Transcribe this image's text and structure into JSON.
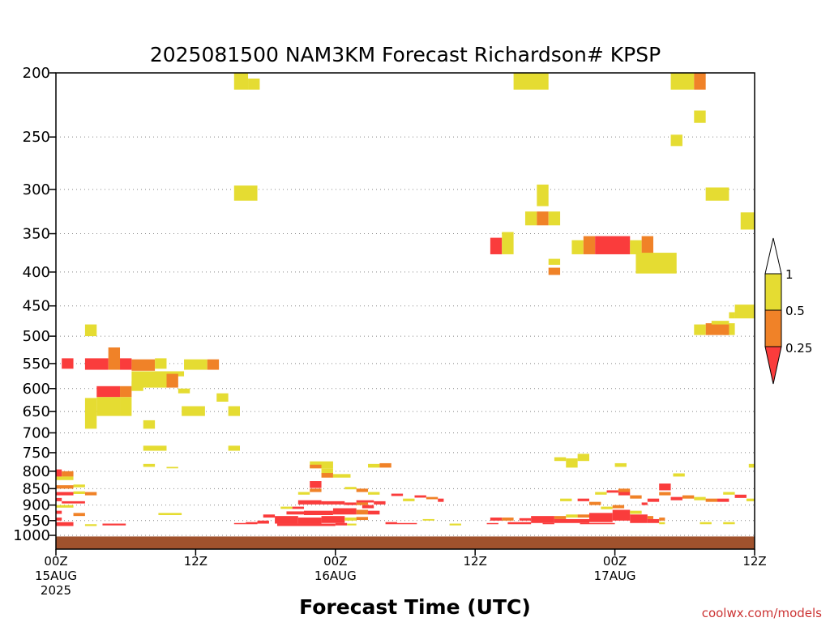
{
  "chart_data": {
    "type": "heatmap",
    "title": "2025081500 NAM3KM Forecast Richardson# KPSP",
    "xlabel": "Forecast Time (UTC)",
    "credit": "coolwx.com/models",
    "x_unit": "forecast hours from 2025-08-15 00Z",
    "xlim": [
      0,
      60
    ],
    "x_ticks": [
      {
        "hour": 0,
        "label": [
          "00Z",
          "15AUG",
          "2025"
        ]
      },
      {
        "hour": 12,
        "label": [
          "12Z"
        ]
      },
      {
        "hour": 24,
        "label": [
          "00Z",
          "16AUG"
        ]
      },
      {
        "hour": 36,
        "label": [
          "12Z"
        ]
      },
      {
        "hour": 48,
        "label": [
          "00Z",
          "17AUG"
        ]
      },
      {
        "hour": 60,
        "label": [
          "12Z"
        ]
      }
    ],
    "y_unit": "pressure (hPa)",
    "ylim": [
      1000,
      200
    ],
    "y_ticks": [
      200,
      250,
      300,
      350,
      400,
      450,
      500,
      550,
      600,
      650,
      700,
      750,
      800,
      850,
      900,
      950,
      1000
    ],
    "grid": "dotted horizontal lines at pressure ticks",
    "colorbar": {
      "labels": [
        "1",
        "0.5",
        "0.25"
      ],
      "bins": [
        {
          "range": "0.5-1",
          "color": "#e5dc32"
        },
        {
          "range": "0.25-0.5",
          "color": "#f08228"
        },
        {
          "range": "<0.25",
          "color": "#fa3c3c"
        }
      ]
    },
    "colors": {
      "Y": "#e5dc32",
      "O": "#f08228",
      "R": "#fa3c3c",
      "ground": "#a0522d"
    },
    "surface_cells": [
      [
        0,
        60,
        1004,
        1030
      ]
    ],
    "cells": [
      [
        "Y",
        15.3,
        16.5,
        200,
        212
      ],
      [
        "Y",
        16.5,
        17.5,
        204,
        212
      ],
      [
        "Y",
        39.3,
        42.3,
        200,
        212
      ],
      [
        "Y",
        52.8,
        54.8,
        200,
        212
      ],
      [
        "O",
        54.8,
        55.8,
        200,
        212
      ],
      [
        "Y",
        54.8,
        55.8,
        228,
        238
      ],
      [
        "Y",
        52.8,
        53.8,
        248,
        258
      ],
      [
        "Y",
        15.3,
        17.3,
        296,
        312
      ],
      [
        "Y",
        55.8,
        57.8,
        298,
        312
      ],
      [
        "Y",
        41.3,
        42.3,
        295,
        318
      ],
      [
        "Y",
        40.3,
        41.3,
        324,
        340
      ],
      [
        "O",
        41.3,
        42.3,
        324,
        340
      ],
      [
        "Y",
        42.3,
        43.3,
        324,
        340
      ],
      [
        "Y",
        58.8,
        60,
        325,
        345
      ],
      [
        "R",
        37.3,
        38.3,
        355,
        376
      ],
      [
        "Y",
        38.3,
        39.3,
        348,
        376
      ],
      [
        "Y",
        44.3,
        45.3,
        358,
        376
      ],
      [
        "O",
        45.3,
        46.3,
        353,
        376
      ],
      [
        "R",
        46.3,
        49.3,
        353,
        376
      ],
      [
        "Y",
        49.3,
        50.3,
        358,
        376
      ],
      [
        "O",
        50.3,
        51.3,
        353,
        376
      ],
      [
        "Y",
        49.8,
        53.3,
        374,
        402
      ],
      [
        "O",
        42.3,
        43.3,
        394,
        404
      ],
      [
        "Y",
        42.3,
        43.3,
        382,
        390
      ],
      [
        "Y",
        57.3,
        58.3,
        478,
        498
      ],
      [
        "O",
        55.8,
        57.8,
        478,
        498
      ],
      [
        "Y",
        54.8,
        55.8,
        480,
        498
      ],
      [
        "Y",
        56.3,
        57.8,
        474,
        480
      ],
      [
        "Y",
        58.3,
        60,
        448,
        470
      ],
      [
        "Y",
        57.8,
        58.3,
        460,
        470
      ],
      [
        "Y",
        2.5,
        3.5,
        480,
        500
      ],
      [
        "R",
        0.5,
        1.5,
        540,
        560
      ],
      [
        "R",
        2.5,
        4.5,
        540,
        562
      ],
      [
        "O",
        4.5,
        5.5,
        520,
        562
      ],
      [
        "R",
        5.5,
        6.5,
        540,
        562
      ],
      [
        "O",
        6.5,
        8.5,
        542,
        564
      ],
      [
        "Y",
        8.5,
        9.5,
        540,
        560
      ],
      [
        "Y",
        9.5,
        11,
        565,
        575
      ],
      [
        "Y",
        11,
        13,
        542,
        562
      ],
      [
        "O",
        13,
        14,
        542,
        562
      ],
      [
        "Y",
        6.5,
        9.5,
        565,
        598
      ],
      [
        "O",
        9.5,
        10.5,
        570,
        598
      ],
      [
        "R",
        3.5,
        5.5,
        595,
        618
      ],
      [
        "O",
        5.5,
        6.5,
        595,
        618
      ],
      [
        "Y",
        6.5,
        7.5,
        585,
        605
      ],
      [
        "Y",
        2.5,
        3.5,
        620,
        690
      ],
      [
        "Y",
        3.5,
        5.5,
        618,
        660
      ],
      [
        "Y",
        5.5,
        6.5,
        618,
        660
      ],
      [
        "Y",
        10.5,
        11.5,
        600,
        610
      ],
      [
        "Y",
        13.8,
        14.8,
        610,
        628
      ],
      [
        "Y",
        10.8,
        12.8,
        638,
        660
      ],
      [
        "Y",
        14.8,
        15.8,
        638,
        660
      ],
      [
        "Y",
        7.5,
        8.5,
        670,
        690
      ],
      [
        "Y",
        7.5,
        9.5,
        732,
        745
      ],
      [
        "Y",
        14.8,
        15.8,
        732,
        745
      ],
      [
        "Y",
        7.5,
        8.5,
        780,
        788
      ],
      [
        "Y",
        9.5,
        10.5,
        788,
        792
      ],
      [
        "Y",
        42.8,
        43.8,
        762,
        772
      ],
      [
        "Y",
        43.8,
        44.8,
        765,
        790
      ],
      [
        "Y",
        44.8,
        45.8,
        753,
        772
      ],
      [
        "Y",
        48,
        49,
        778,
        788
      ],
      [
        "Y",
        53,
        54,
        806,
        815
      ],
      [
        "Y",
        59.5,
        60,
        780,
        790
      ],
      [
        "Y",
        21.8,
        23.8,
        773,
        792
      ],
      [
        "O",
        21.8,
        22.8,
        782,
        792
      ],
      [
        "Y",
        26.8,
        27.8,
        780,
        790
      ],
      [
        "O",
        27.8,
        28.8,
        778,
        790
      ],
      [
        "Y",
        22.8,
        23.8,
        792,
        808
      ],
      [
        "Y",
        23.8,
        25.3,
        808,
        818
      ],
      [
        "O",
        22.8,
        23.8,
        805,
        818
      ],
      [
        "R",
        21.8,
        22.8,
        828,
        848
      ],
      [
        "O",
        21.8,
        22.8,
        850,
        860
      ],
      [
        "Y",
        24.8,
        25.8,
        845,
        852
      ],
      [
        "O",
        25.8,
        26.8,
        850,
        860
      ],
      [
        "Y",
        26.8,
        27.8,
        860,
        868
      ],
      [
        "Y",
        20.8,
        21.8,
        860,
        868
      ],
      [
        "R",
        28.8,
        29.8,
        865,
        872
      ],
      [
        "R",
        30.8,
        31.8,
        870,
        877
      ],
      [
        "O",
        31.8,
        32.8,
        875,
        882
      ],
      [
        "R",
        32.8,
        33.3,
        880,
        890
      ],
      [
        "Y",
        29.8,
        30.8,
        880,
        888
      ],
      [
        "R",
        25.8,
        27.3,
        885,
        892
      ],
      [
        "R",
        27.3,
        28.3,
        888,
        898
      ],
      [
        "O",
        48.3,
        49.3,
        850,
        860
      ],
      [
        "R",
        48.3,
        49.3,
        860,
        870
      ],
      [
        "O",
        49.3,
        50.3,
        870,
        880
      ],
      [
        "R",
        50.8,
        51.8,
        880,
        890
      ],
      [
        "R",
        50.3,
        50.8,
        892,
        900
      ],
      [
        "R",
        51.8,
        52.8,
        835,
        855
      ],
      [
        "O",
        51.8,
        52.8,
        860,
        870
      ],
      [
        "R",
        52.8,
        53.8,
        875,
        885
      ],
      [
        "O",
        53.8,
        54.8,
        870,
        880
      ],
      [
        "Y",
        54.8,
        55.8,
        875,
        885
      ],
      [
        "O",
        55.8,
        56.8,
        880,
        890
      ],
      [
        "R",
        56.8,
        57.8,
        880,
        890
      ],
      [
        "Y",
        57.3,
        58.3,
        860,
        868
      ],
      [
        "R",
        58.3,
        59.3,
        868,
        878
      ],
      [
        "Y",
        59.3,
        60,
        880,
        888
      ],
      [
        "Y",
        46.3,
        47.3,
        860,
        868
      ],
      [
        "R",
        47.3,
        48.3,
        855,
        862
      ],
      [
        "Y",
        43.3,
        44.3,
        880,
        888
      ],
      [
        "R",
        44.8,
        45.8,
        880,
        888
      ],
      [
        "O",
        45.8,
        46.8,
        890,
        900
      ],
      [
        "Y",
        46.8,
        47.8,
        905,
        913
      ],
      [
        "O",
        47.8,
        48.8,
        900,
        910
      ],
      [
        "R",
        0,
        0.5,
        795,
        815
      ],
      [
        "O",
        0.5,
        1.5,
        800,
        815
      ],
      [
        "Y",
        0,
        1.5,
        815,
        825
      ],
      [
        "Y",
        1.5,
        2.5,
        838,
        846
      ],
      [
        "O",
        0,
        1.5,
        840,
        850
      ],
      [
        "R",
        0,
        1.5,
        860,
        870
      ],
      [
        "Y",
        1.5,
        2.5,
        858,
        866
      ],
      [
        "O",
        2.5,
        3.5,
        860,
        870
      ],
      [
        "R",
        0,
        0.5,
        878,
        888
      ],
      [
        "R",
        0.5,
        2.5,
        888,
        895
      ],
      [
        "Y",
        0,
        1.5,
        900,
        908
      ],
      [
        "R",
        0,
        0.5,
        918,
        928
      ],
      [
        "O",
        1.5,
        2.5,
        925,
        935
      ],
      [
        "Y",
        8.8,
        10.8,
        925,
        932
      ],
      [
        "R",
        0,
        0.5,
        940,
        950
      ],
      [
        "R",
        0,
        1.5,
        955,
        968
      ],
      [
        "R",
        4,
        6,
        960,
        966
      ],
      [
        "Y",
        2.5,
        3.5,
        962,
        968
      ],
      [
        "R",
        20.8,
        22.8,
        885,
        898
      ],
      [
        "R",
        22.8,
        24.8,
        888,
        898
      ],
      [
        "R",
        24.8,
        25.8,
        892,
        900
      ],
      [
        "O",
        25.8,
        26.8,
        892,
        900
      ],
      [
        "R",
        26.3,
        27.3,
        900,
        910
      ],
      [
        "Y",
        19.3,
        20.3,
        905,
        912
      ],
      [
        "R",
        20.3,
        21.3,
        905,
        912
      ],
      [
        "R",
        19.8,
        21.3,
        920,
        930
      ],
      [
        "R",
        21.3,
        23.8,
        918,
        932
      ],
      [
        "R",
        23.8,
        25.8,
        910,
        930
      ],
      [
        "O",
        25.8,
        26.8,
        915,
        930
      ],
      [
        "R",
        26.8,
        27.8,
        918,
        930
      ],
      [
        "R",
        17.8,
        18.8,
        930,
        940
      ],
      [
        "R",
        18.8,
        20.8,
        935,
        960
      ],
      [
        "R",
        20.8,
        22.8,
        940,
        960
      ],
      [
        "R",
        22.8,
        24.8,
        935,
        958
      ],
      [
        "Y",
        24.8,
        25.8,
        940,
        950
      ],
      [
        "O",
        25.8,
        26.8,
        938,
        948
      ],
      [
        "R",
        17.3,
        18.3,
        950,
        960
      ],
      [
        "R",
        16.3,
        17.3,
        955,
        962
      ],
      [
        "R",
        15.3,
        16.3,
        958,
        962
      ],
      [
        "R",
        19,
        24,
        960,
        968
      ],
      [
        "R",
        24,
        25,
        958,
        966
      ],
      [
        "Y",
        25,
        25.8,
        960,
        966
      ],
      [
        "R",
        28.3,
        29.3,
        955,
        962
      ],
      [
        "R",
        29.3,
        31,
        958,
        962
      ],
      [
        "Y",
        33.8,
        34.8,
        960,
        966
      ],
      [
        "Y",
        31.5,
        32.5,
        945,
        950
      ],
      [
        "R",
        37.3,
        38.3,
        940,
        950
      ],
      [
        "O",
        38.3,
        39.3,
        940,
        950
      ],
      [
        "R",
        39.8,
        40.8,
        942,
        950
      ],
      [
        "R",
        40.8,
        42.8,
        935,
        958
      ],
      [
        "O",
        42.8,
        43.8,
        935,
        945
      ],
      [
        "Y",
        43.8,
        44.8,
        930,
        940
      ],
      [
        "R",
        42.8,
        45.8,
        945,
        958
      ],
      [
        "O",
        44.8,
        45.8,
        930,
        940
      ],
      [
        "R",
        45.8,
        47.8,
        925,
        955
      ],
      [
        "R",
        47.8,
        49.3,
        915,
        950
      ],
      [
        "Y",
        49.3,
        50.3,
        918,
        928
      ],
      [
        "R",
        49.3,
        50.8,
        930,
        958
      ],
      [
        "O",
        50.8,
        51.3,
        935,
        945
      ],
      [
        "R",
        50.8,
        51.8,
        945,
        958
      ],
      [
        "O",
        51.8,
        52.3,
        940,
        950
      ],
      [
        "Y",
        55.3,
        56.3,
        955,
        962
      ],
      [
        "R",
        38.8,
        40.8,
        955,
        962
      ],
      [
        "R",
        45,
        48,
        958,
        962
      ],
      [
        "R",
        37,
        38,
        958,
        962
      ],
      [
        "Y",
        57.3,
        58.3,
        955,
        962
      ],
      [
        "Y",
        51.8,
        52.3,
        955,
        962
      ],
      [
        "R",
        41.8,
        42.8,
        958,
        962
      ]
    ]
  }
}
